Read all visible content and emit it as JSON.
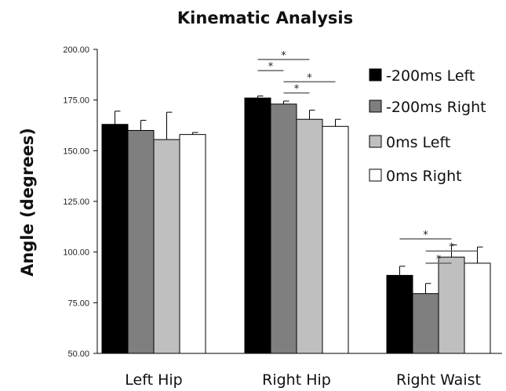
{
  "chart_data": {
    "type": "bar",
    "title": "Kinematic Analysis",
    "xlabel": "",
    "ylabel": "Angle (degrees)",
    "ylim": [
      50,
      200
    ],
    "yticks": [
      "50.00",
      "75.00",
      "100.00",
      "125.00",
      "150.00",
      "175.00",
      "200.00"
    ],
    "categories": [
      "Left Hip",
      "Right Hip",
      "Right Waist"
    ],
    "legend_position": "right",
    "grid": false,
    "series": [
      {
        "name": "-200ms Left",
        "color": "#000000",
        "values": [
          163,
          176,
          88.5
        ],
        "errors": [
          6.5,
          1,
          4.5
        ]
      },
      {
        "name": "-200ms Right",
        "color": "#7f7f7f",
        "values": [
          160,
          173,
          79.5
        ],
        "errors": [
          5,
          1.5,
          5
        ]
      },
      {
        "name": "0ms Left",
        "color": "#bfbfbf",
        "values": [
          155.5,
          165.5,
          97.5
        ],
        "errors": [
          13.5,
          4.5,
          6
        ]
      },
      {
        "name": "0ms Right",
        "color": "#ffffff",
        "values": [
          158,
          162,
          94.5
        ],
        "errors": [
          1,
          3.5,
          8
        ]
      }
    ],
    "significance": [
      {
        "category": 1,
        "from": 0,
        "to": 2,
        "value": 195,
        "label": "*"
      },
      {
        "category": 1,
        "from": 0,
        "to": 1,
        "value": 189.5,
        "label": "*"
      },
      {
        "category": 1,
        "from": 1,
        "to": 3,
        "value": 184,
        "label": "*"
      },
      {
        "category": 1,
        "from": 1,
        "to": 2,
        "value": 178.5,
        "label": "*"
      },
      {
        "category": 2,
        "from": 0,
        "to": 2,
        "value": 106.5,
        "label": "*"
      },
      {
        "category": 2,
        "from": 1,
        "to": 3,
        "value": 100.5,
        "label": "*"
      },
      {
        "category": 2,
        "from": 1,
        "to": 2,
        "value": 94.5,
        "label": "*"
      }
    ]
  }
}
